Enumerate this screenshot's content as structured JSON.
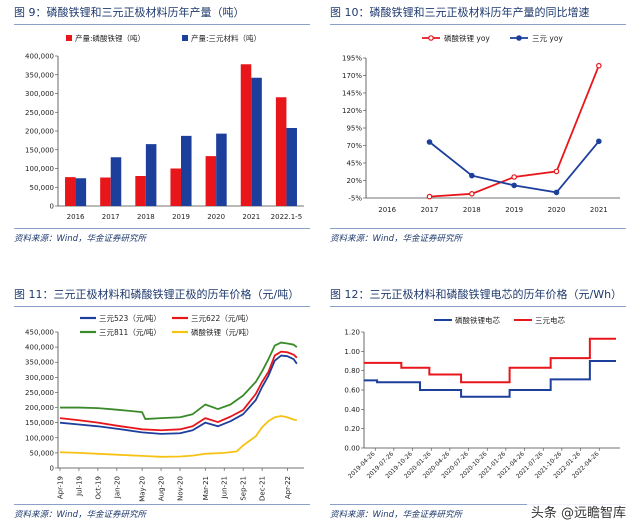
{
  "panels": [
    {
      "title": "图 9：磷酸铁锂和三元正极材料历年产量（吨）",
      "source": "资料来源：Wind，华金证券研究所"
    },
    {
      "title": "图 10：磷酸铁锂和三元正极材料历年产量的同比增速",
      "source": "资料来源：Wind，华金证券研究所"
    },
    {
      "title": "图 11：三元正极材料和磷酸铁锂正极的历年价格（元/吨）",
      "source": "资料来源：Wind，华金证券研究所"
    },
    {
      "title": "图 12：三元正极材料和磷酸铁锂电芯的历年价格（元/Wh）",
      "source": "资料来源：Wind，华金证券研究所"
    }
  ],
  "watermark": "头条 @远瞻智库",
  "chart_data": [
    {
      "type": "bar",
      "categories": [
        "2016",
        "2017",
        "2018",
        "2019",
        "2020",
        "2021",
        "2022.1-5"
      ],
      "series": [
        {
          "name": "产量:磷酸铁锂（吨）",
          "color": "#e8161b",
          "values": [
            77000,
            76000,
            80000,
            100000,
            133000,
            378000,
            290000
          ]
        },
        {
          "name": "产量:三元材料（吨）",
          "color": "#1d3f9c",
          "values": [
            74000,
            130000,
            165000,
            187000,
            193000,
            342000,
            208000
          ]
        }
      ],
      "ylim": [
        0,
        400000
      ],
      "yticks": [
        "0",
        "50,000",
        "100,000",
        "150,000",
        "200,000",
        "250,000",
        "300,000",
        "350,000",
        "400,000"
      ],
      "ytick_values": [
        0,
        50000,
        100000,
        150000,
        200000,
        250000,
        300000,
        350000,
        400000
      ],
      "legend": "top-left"
    },
    {
      "type": "line",
      "categories": [
        "2016",
        "2017",
        "2018",
        "2019",
        "2020",
        "2021"
      ],
      "series": [
        {
          "name": "磷酸铁锂 yoy",
          "color": "#e8161b",
          "marker": "circle-open",
          "values": [
            null,
            -3,
            1,
            25,
            33,
            184
          ]
        },
        {
          "name": "三元 yoy",
          "color": "#1d3f9c",
          "marker": "circle-filled",
          "values": [
            null,
            75,
            27,
            13,
            3,
            76
          ]
        }
      ],
      "ylim": [
        -5,
        195
      ],
      "yticks": [
        "-5%",
        "20%",
        "45%",
        "70%",
        "95%",
        "120%",
        "145%",
        "170%",
        "195%"
      ],
      "ytick_values": [
        -5,
        20,
        45,
        70,
        95,
        120,
        145,
        170,
        195
      ],
      "legend": "top"
    },
    {
      "type": "line",
      "xticks": [
        "Apr-19",
        "Jul-19",
        "Oct-19",
        "Jan-20",
        "May-20",
        "Aug-20",
        "Nov-20",
        "Mar-21",
        "Jun-21",
        "Sep-21",
        "Dec-21",
        "Apr-22"
      ],
      "xtick_positions": [
        0,
        3,
        6,
        9,
        13,
        16,
        19,
        23,
        26,
        29,
        32,
        36
      ],
      "xmax": 38,
      "series": [
        {
          "name": "三元523（元/吨）",
          "color": "#1d3f9c",
          "points": [
            [
              0,
              150000
            ],
            [
              3,
              144000
            ],
            [
              6,
              138000
            ],
            [
              9,
              130000
            ],
            [
              13,
              118000
            ],
            [
              16,
              113000
            ],
            [
              19,
              115000
            ],
            [
              21,
              125000
            ],
            [
              23,
              150000
            ],
            [
              25,
              138000
            ],
            [
              27,
              155000
            ],
            [
              29,
              178000
            ],
            [
              31,
              225000
            ],
            [
              32,
              268000
            ],
            [
              33,
              305000
            ],
            [
              34,
              355000
            ],
            [
              35,
              372000
            ],
            [
              36,
              370000
            ],
            [
              37,
              360000
            ],
            [
              37.5,
              345000
            ]
          ]
        },
        {
          "name": "三元622（元/吨）",
          "color": "#e8161b",
          "points": [
            [
              0,
              165000
            ],
            [
              3,
              158000
            ],
            [
              6,
              150000
            ],
            [
              9,
              140000
            ],
            [
              13,
              128000
            ],
            [
              16,
              125000
            ],
            [
              19,
              128000
            ],
            [
              21,
              138000
            ],
            [
              23,
              165000
            ],
            [
              25,
              152000
            ],
            [
              27,
              170000
            ],
            [
              29,
              192000
            ],
            [
              31,
              245000
            ],
            [
              32,
              285000
            ],
            [
              33,
              318000
            ],
            [
              34,
              372000
            ],
            [
              35,
              385000
            ],
            [
              36,
              383000
            ],
            [
              37,
              375000
            ],
            [
              37.5,
              365000
            ]
          ]
        },
        {
          "name": "三元811（元/吨）",
          "color": "#3a8a2a",
          "points": [
            [
              0,
              200000
            ],
            [
              3,
              200000
            ],
            [
              6,
              198000
            ],
            [
              9,
              193000
            ],
            [
              13,
              185000
            ],
            [
              13.5,
              162000
            ],
            [
              16,
              165000
            ],
            [
              19,
              168000
            ],
            [
              21,
              178000
            ],
            [
              23,
              210000
            ],
            [
              25,
              195000
            ],
            [
              27,
              210000
            ],
            [
              29,
              240000
            ],
            [
              31,
              285000
            ],
            [
              32,
              320000
            ],
            [
              33,
              360000
            ],
            [
              34,
              405000
            ],
            [
              35,
              415000
            ],
            [
              36,
              412000
            ],
            [
              37,
              408000
            ],
            [
              37.5,
              400000
            ]
          ]
        },
        {
          "name": "磷酸铁锂（元/吨）",
          "color": "#f6c214",
          "points": [
            [
              0,
              52000
            ],
            [
              3,
              50000
            ],
            [
              6,
              47000
            ],
            [
              9,
              44000
            ],
            [
              13,
              40000
            ],
            [
              16,
              37000
            ],
            [
              19,
              38000
            ],
            [
              21,
              41000
            ],
            [
              23,
              47000
            ],
            [
              26,
              50000
            ],
            [
              28,
              55000
            ],
            [
              29,
              75000
            ],
            [
              31,
              105000
            ],
            [
              32,
              135000
            ],
            [
              33,
              155000
            ],
            [
              34,
              168000
            ],
            [
              35,
              172000
            ],
            [
              36,
              168000
            ],
            [
              37,
              160000
            ],
            [
              37.5,
              158000
            ]
          ]
        }
      ],
      "ylim": [
        0,
        450000
      ],
      "yticks": [
        "0",
        "50,000",
        "100,000",
        "150,000",
        "200,000",
        "250,000",
        "300,000",
        "350,000",
        "400,000",
        "450,000"
      ],
      "ytick_values": [
        0,
        50000,
        100000,
        150000,
        200000,
        250000,
        300000,
        350000,
        400000,
        450000
      ],
      "legend": "top-left"
    },
    {
      "type": "line",
      "step": true,
      "xticks": [
        "2019-04-26",
        "2019-07-26",
        "2019-10-26",
        "2020-01-26",
        "2020-04-26",
        "2020-07-26",
        "2020-10-26",
        "2021-01-26",
        "2021-04-26",
        "2021-07-26",
        "2021-10-26",
        "2022-01-26",
        "2022-04-26"
      ],
      "xmax": 12.9,
      "series": [
        {
          "name": "磷酸铁锂电芯",
          "color": "#1d3f9c",
          "points": [
            [
              -0.6,
              0.7
            ],
            [
              0.1,
              0.7
            ],
            [
              0.1,
              0.68
            ],
            [
              2.4,
              0.68
            ],
            [
              2.4,
              0.6
            ],
            [
              4.6,
              0.6
            ],
            [
              4.6,
              0.53
            ],
            [
              7.2,
              0.53
            ],
            [
              7.2,
              0.6
            ],
            [
              9.4,
              0.6
            ],
            [
              9.4,
              0.71
            ],
            [
              11.5,
              0.71
            ],
            [
              11.5,
              0.9
            ],
            [
              12.9,
              0.9
            ]
          ]
        },
        {
          "name": "三元电芯",
          "color": "#e8161b",
          "points": [
            [
              -0.6,
              0.88
            ],
            [
              1.4,
              0.88
            ],
            [
              1.4,
              0.83
            ],
            [
              2.9,
              0.83
            ],
            [
              2.9,
              0.76
            ],
            [
              4.6,
              0.76
            ],
            [
              4.6,
              0.68
            ],
            [
              7.2,
              0.68
            ],
            [
              7.2,
              0.83
            ],
            [
              9.4,
              0.83
            ],
            [
              9.4,
              0.93
            ],
            [
              11.5,
              0.93
            ],
            [
              11.5,
              1.13
            ],
            [
              12.9,
              1.13
            ]
          ]
        }
      ],
      "ylim": [
        0,
        1.2
      ],
      "yticks": [
        "0.00",
        "0.20",
        "0.40",
        "0.60",
        "0.80",
        "1.00",
        "1.20"
      ],
      "ytick_values": [
        0,
        0.2,
        0.4,
        0.6,
        0.8,
        1.0,
        1.2
      ],
      "legend": "top"
    }
  ]
}
